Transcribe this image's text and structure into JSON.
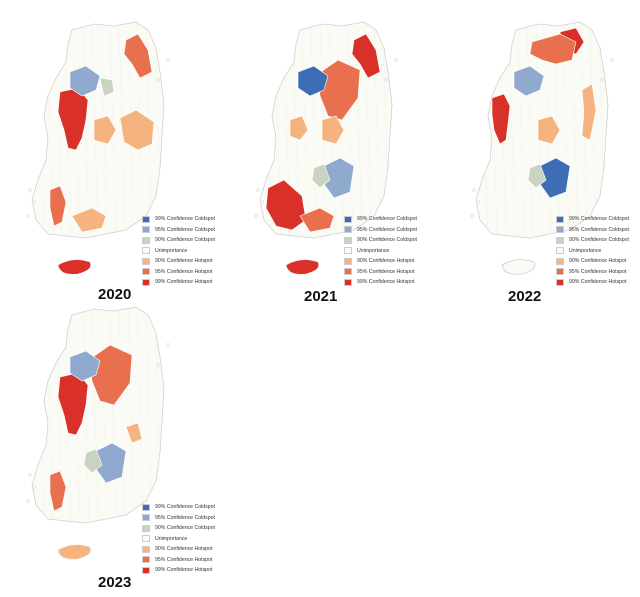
{
  "panels": [
    {
      "year": "2020",
      "hotspots": [
        {
          "cat": "h99",
          "shape": "westcoast"
        },
        {
          "cat": "h99",
          "shape": "jeju"
        },
        {
          "cat": "h95",
          "shape": "northeast"
        },
        {
          "cat": "h95",
          "shape": "sw_island"
        },
        {
          "cat": "h90",
          "shape": "center_east"
        },
        {
          "cat": "h90",
          "shape": "center"
        },
        {
          "cat": "h90",
          "shape": "south_coast"
        },
        {
          "cat": "c95",
          "shape": "capital"
        },
        {
          "cat": "c90",
          "shape": "capital_edge"
        }
      ]
    },
    {
      "year": "2021",
      "hotspots": [
        {
          "cat": "h99",
          "shape": "sw_tip"
        },
        {
          "cat": "h99",
          "shape": "jeju"
        },
        {
          "cat": "h99",
          "shape": "northeast"
        },
        {
          "cat": "h95",
          "shape": "center_north"
        },
        {
          "cat": "h95",
          "shape": "south_coast"
        },
        {
          "cat": "h90",
          "shape": "center"
        },
        {
          "cat": "h90",
          "shape": "west_mid"
        },
        {
          "cat": "c99",
          "shape": "capital"
        },
        {
          "cat": "c95",
          "shape": "south_mid"
        },
        {
          "cat": "c90",
          "shape": "center_small"
        }
      ]
    },
    {
      "year": "2022",
      "hotspots": [
        {
          "cat": "h99",
          "shape": "westcoast_thin"
        },
        {
          "cat": "h99",
          "shape": "ne_cluster"
        },
        {
          "cat": "h95",
          "shape": "northeast_band"
        },
        {
          "cat": "h90",
          "shape": "east_coast"
        },
        {
          "cat": "h90",
          "shape": "center"
        },
        {
          "cat": "c99",
          "shape": "south_mid"
        },
        {
          "cat": "c95",
          "shape": "capital"
        },
        {
          "cat": "c90",
          "shape": "center_small"
        }
      ]
    },
    {
      "year": "2023",
      "hotspots": [
        {
          "cat": "h99",
          "shape": "westcoast"
        },
        {
          "cat": "h95",
          "shape": "center_north"
        },
        {
          "cat": "h95",
          "shape": "sw_island"
        },
        {
          "cat": "h90",
          "shape": "jeju"
        },
        {
          "cat": "h90",
          "shape": "east_small"
        },
        {
          "cat": "c95",
          "shape": "capital"
        },
        {
          "cat": "c95",
          "shape": "south_mid"
        },
        {
          "cat": "c90",
          "shape": "center_small"
        }
      ]
    }
  ],
  "legend": [
    {
      "key": "c99",
      "label": "99% Confidence Coldspot",
      "color": "#3d6eb5"
    },
    {
      "key": "c95",
      "label": "95% Confidence Coldspot",
      "color": "#8fa9cf"
    },
    {
      "key": "c90",
      "label": "90% Confidence Coldspot",
      "color": "#c8d3c2"
    },
    {
      "key": "none",
      "label": "Unimportance",
      "color": "#fbfbf6"
    },
    {
      "key": "h90",
      "label": "90% Confidence Hotspot",
      "color": "#f4b37f"
    },
    {
      "key": "h95",
      "label": "95% Confidence Hotspot",
      "color": "#e8704f"
    },
    {
      "key": "h99",
      "label": "99% Confidence Hotspot",
      "color": "#d9312a"
    }
  ]
}
